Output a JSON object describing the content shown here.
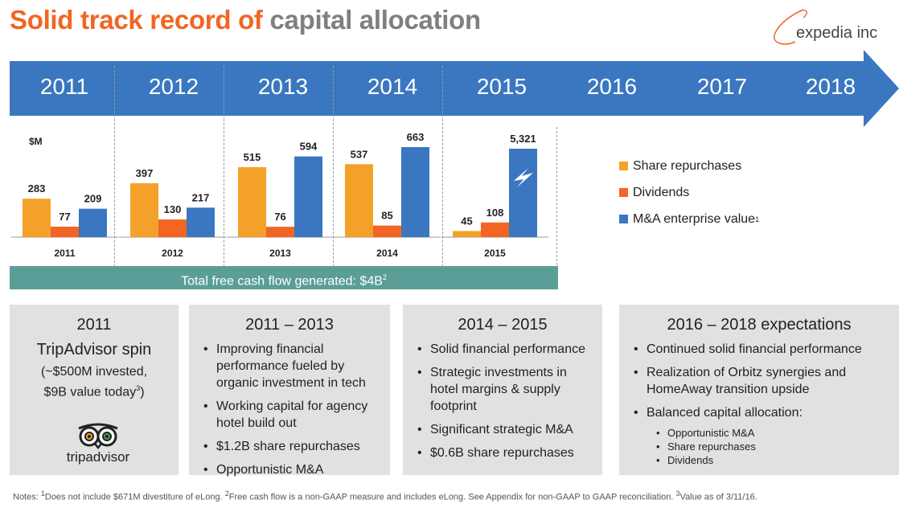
{
  "header": {
    "title_orange": "Solid track record of",
    "title_grey": "capital allocation",
    "logo_text": "expedia inc",
    "colors": {
      "orange": "#f26522",
      "grey": "#7f7f7f",
      "timeline_blue": "#3a77c0",
      "teal": "#5a9e97"
    }
  },
  "timeline": {
    "years": [
      "2011",
      "2012",
      "2013",
      "2014",
      "2015",
      "2016",
      "2017",
      "2018"
    ]
  },
  "chart_data": {
    "type": "bar",
    "unit_label": "$M",
    "categories": [
      "2011",
      "2012",
      "2013",
      "2014",
      "2015"
    ],
    "series": [
      {
        "name": "Share repurchases",
        "color": "#f4a12a",
        "values": [
          283,
          397,
          515,
          537,
          45
        ],
        "labels": [
          "283",
          "397",
          "515",
          "537",
          "45"
        ]
      },
      {
        "name": "Dividends",
        "color": "#f26522",
        "values": [
          77,
          130,
          76,
          85,
          108
        ],
        "labels": [
          "77",
          "130",
          "76",
          "85",
          "108"
        ]
      },
      {
        "name": "M&A enterprise value",
        "color": "#3a77c0",
        "values": [
          209,
          217,
          594,
          663,
          5321
        ],
        "labels": [
          "209",
          "217",
          "594",
          "663",
          "5,321"
        ],
        "note_marker": "1"
      }
    ],
    "broken_axis": {
      "category": "2015",
      "series": "M&A enterprise value"
    }
  },
  "fcf_bar": {
    "text": "Total free cash flow generated: $4B",
    "sup": "2"
  },
  "boxes": {
    "b1": {
      "title": "2011",
      "subtitle": "TripAdvisor spin",
      "note_line1": "(~$500M invested,",
      "note_line2": "$9B value today",
      "note_sup": "3",
      "note_close": ")",
      "logo_text": "tripadvisor",
      "logo_icon": "tripadvisor-owl-icon"
    },
    "b2": {
      "title": "2011 – 2013",
      "bullets": [
        "Improving financial performance fueled by organic investment in tech",
        "Working capital for agency hotel build out",
        "$1.2B share repurchases",
        "Opportunistic M&A"
      ]
    },
    "b3": {
      "title": "2014 – 2015",
      "bullets": [
        "Solid financial performance",
        "Strategic investments in hotel margins & supply footprint",
        "Significant strategic M&A",
        "$0.6B share repurchases"
      ]
    },
    "b4": {
      "title": "2016 – 2018 expectations",
      "bullets": [
        "Continued solid financial performance",
        "Realization of Orbitz synergies and HomeAway transition upside",
        "Balanced capital allocation:"
      ],
      "sub_bullets": [
        "Opportunistic M&A",
        "Share repurchases",
        "Dividends"
      ]
    }
  },
  "notes": {
    "prefix": "Notes: ",
    "n1_sup": "1",
    "n1": "Does not include $671M divestiture of eLong. ",
    "n2_sup": "2",
    "n2": "Free cash flow is a non-GAAP measure and includes eLong. See Appendix for non-GAAP to GAAP reconciliation. ",
    "n3_sup": "3",
    "n3": "Value as of 3/11/16."
  }
}
